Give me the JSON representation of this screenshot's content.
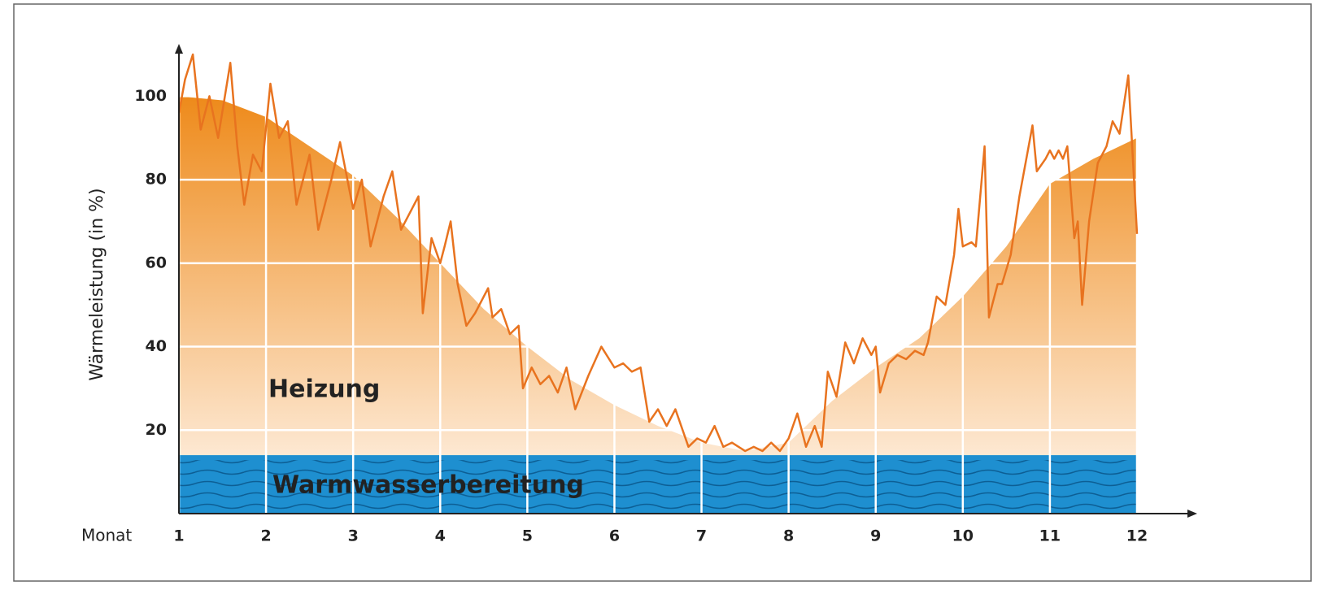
{
  "chart_data": {
    "type": "area",
    "xlabel": "Monat",
    "ylabel": "Wärmeleistung (in %)",
    "xlim": [
      1,
      12
    ],
    "ylim": [
      0,
      110
    ],
    "xticks": [
      1,
      2,
      3,
      4,
      5,
      6,
      7,
      8,
      9,
      10,
      11,
      12
    ],
    "yticks": [
      20,
      40,
      60,
      80,
      100
    ],
    "grid": true,
    "series": [
      {
        "name": "Heizung",
        "style": "area",
        "color": "#ee8a1a",
        "x": [
          1,
          1.5,
          2,
          2.5,
          3,
          3.5,
          4,
          4.5,
          5,
          5.5,
          6,
          6.5,
          7,
          7.5,
          8,
          8.5,
          9,
          9.5,
          10,
          10.5,
          11,
          11.5,
          12
        ],
        "values": [
          100,
          99,
          95,
          88,
          81,
          71,
          60,
          49,
          40,
          32,
          26,
          21,
          17,
          15,
          17,
          27,
          35,
          42,
          52,
          64,
          79,
          85,
          90
        ]
      },
      {
        "name": "Warmwasserbereitung",
        "style": "band",
        "color": "#1e8fd0",
        "values": [
          14
        ]
      },
      {
        "style": "line",
        "color": "#e8731f",
        "x": [
          1,
          1.07,
          1.16,
          1.25,
          1.35,
          1.45,
          1.59,
          1.67,
          1.75,
          1.85,
          1.95,
          2.05,
          2.15,
          2.25,
          2.35,
          2.5,
          2.6,
          2.75,
          2.85,
          3.0,
          3.1,
          3.2,
          3.35,
          3.45,
          3.55,
          3.65,
          3.75,
          3.8,
          3.9,
          4.0,
          4.05,
          4.12,
          4.2,
          4.3,
          4.4,
          4.55,
          4.6,
          4.7,
          4.8,
          4.9,
          4.95,
          5.05,
          5.15,
          5.25,
          5.35,
          5.45,
          5.55,
          5.7,
          5.85,
          6.0,
          6.1,
          6.2,
          6.3,
          6.4,
          6.5,
          6.6,
          6.7,
          6.85,
          6.95,
          7.05,
          7.15,
          7.25,
          7.35,
          7.5,
          7.6,
          7.7,
          7.8,
          7.9,
          8.0,
          8.1,
          8.2,
          8.3,
          8.38,
          8.45,
          8.55,
          8.65,
          8.75,
          8.85,
          8.95,
          9.0,
          9.05,
          9.15,
          9.25,
          9.35,
          9.45,
          9.55,
          9.6,
          9.7,
          9.8,
          9.9,
          9.95,
          10.0,
          10.1,
          10.15,
          10.25,
          10.3,
          10.4,
          10.45,
          10.55,
          10.65,
          10.8,
          10.85,
          10.95,
          11.0,
          11.05,
          11.1,
          11.15,
          11.2,
          11.28,
          11.32,
          11.37,
          11.45,
          11.55,
          11.65,
          11.72,
          11.8,
          11.9,
          12.0
        ],
        "values": [
          96,
          104,
          110,
          92,
          100,
          90,
          108,
          88,
          74,
          86,
          82,
          103,
          90,
          94,
          74,
          86,
          68,
          80,
          89,
          73,
          80,
          64,
          76,
          82,
          68,
          72,
          76,
          48,
          66,
          60,
          64,
          70,
          55,
          45,
          48,
          54,
          47,
          49,
          43,
          45,
          30,
          35,
          31,
          33,
          29,
          35,
          25,
          33,
          40,
          35,
          36,
          34,
          35,
          22,
          25,
          21,
          25,
          16,
          18,
          17,
          21,
          16,
          17,
          15,
          16,
          15,
          17,
          15,
          18,
          24,
          16,
          21,
          16,
          34,
          28,
          41,
          36,
          42,
          38,
          40,
          29,
          36,
          38,
          37,
          39,
          38,
          41,
          52,
          50,
          62,
          73,
          64,
          65,
          64,
          88,
          47,
          55,
          55,
          62,
          76,
          93,
          82,
          85,
          87,
          85,
          87,
          85,
          88,
          66,
          70,
          50,
          70,
          84,
          88,
          94,
          91,
          105,
          67
        ]
      }
    ]
  }
}
